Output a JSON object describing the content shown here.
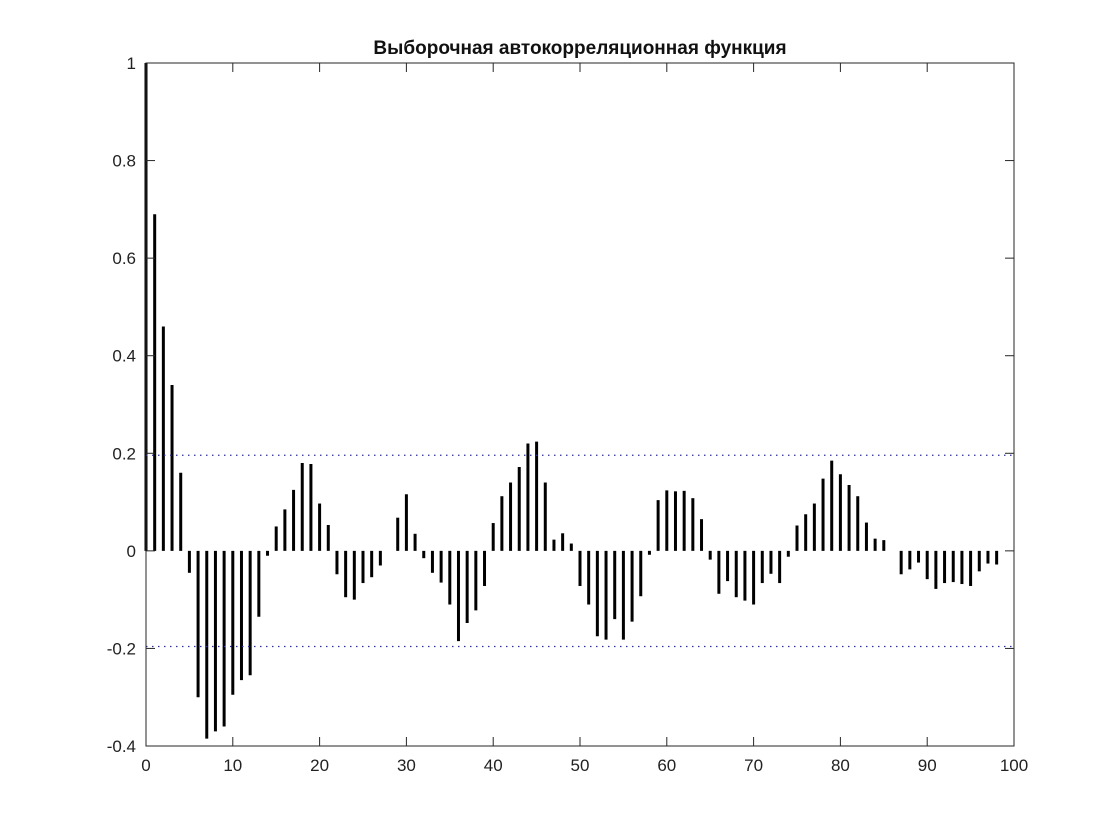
{
  "chart_data": {
    "type": "bar",
    "title": "Выборочная автокорреляционная функция",
    "xlabel": "",
    "ylabel": "",
    "xlim": [
      0,
      100
    ],
    "ylim": [
      -0.4,
      1
    ],
    "x_ticks": [
      0,
      10,
      20,
      30,
      40,
      50,
      60,
      70,
      80,
      90,
      100
    ],
    "y_ticks": [
      -0.4,
      -0.2,
      0,
      0.2,
      0.4,
      0.6,
      0.8,
      1
    ],
    "y_tick_labels": [
      "-0.4",
      "-0.2",
      "0",
      "0.2",
      "0.4",
      "0.6",
      "0.8",
      "1"
    ],
    "grid": false,
    "confidence_bounds": [
      0.196,
      -0.196
    ],
    "bound_style": "dotted",
    "bar_color": "#000000",
    "bound_color": "#2b2bb8",
    "x": [
      0,
      1,
      2,
      3,
      4,
      5,
      6,
      7,
      8,
      9,
      10,
      11,
      12,
      13,
      14,
      15,
      16,
      17,
      18,
      19,
      20,
      21,
      22,
      23,
      24,
      25,
      26,
      27,
      28,
      29,
      30,
      31,
      32,
      33,
      34,
      35,
      36,
      37,
      38,
      39,
      40,
      41,
      42,
      43,
      44,
      45,
      46,
      47,
      48,
      49,
      50,
      51,
      52,
      53,
      54,
      55,
      56,
      57,
      58,
      59,
      60,
      61,
      62,
      63,
      64,
      65,
      66,
      67,
      68,
      69,
      70,
      71,
      72,
      73,
      74,
      75,
      76,
      77,
      78,
      79,
      80,
      81,
      82,
      83,
      84,
      85,
      86,
      87,
      88,
      89,
      90,
      91,
      92,
      93,
      94,
      95,
      96,
      97,
      98,
      99
    ],
    "values": [
      1.0,
      0.69,
      0.46,
      0.34,
      0.16,
      -0.045,
      -0.3,
      -0.385,
      -0.37,
      -0.36,
      -0.295,
      -0.265,
      -0.255,
      -0.135,
      -0.01,
      0.05,
      0.085,
      0.125,
      0.18,
      0.178,
      0.097,
      0.053,
      -0.048,
      -0.095,
      -0.1,
      -0.066,
      -0.054,
      -0.03,
      0.0,
      0.068,
      0.116,
      0.035,
      -0.015,
      -0.045,
      -0.065,
      -0.11,
      -0.185,
      -0.148,
      -0.122,
      -0.072,
      0.057,
      0.112,
      0.14,
      0.172,
      0.22,
      0.224,
      0.14,
      0.023,
      0.036,
      0.015,
      -0.072,
      -0.11,
      -0.175,
      -0.182,
      -0.14,
      -0.182,
      -0.145,
      -0.093,
      -0.008,
      0.104,
      0.124,
      0.122,
      0.123,
      0.108,
      0.065,
      -0.018,
      -0.088,
      -0.062,
      -0.095,
      -0.102,
      -0.11,
      -0.066,
      -0.047,
      -0.066,
      -0.012,
      0.052,
      0.075,
      0.097,
      0.148,
      0.185,
      0.157,
      0.135,
      0.112,
      0.058,
      0.025,
      0.022,
      0.0,
      -0.048,
      -0.038,
      -0.024,
      -0.058,
      -0.078,
      -0.066,
      -0.064,
      -0.068,
      -0.072,
      -0.042,
      -0.026,
      -0.028,
      0.0
    ]
  }
}
